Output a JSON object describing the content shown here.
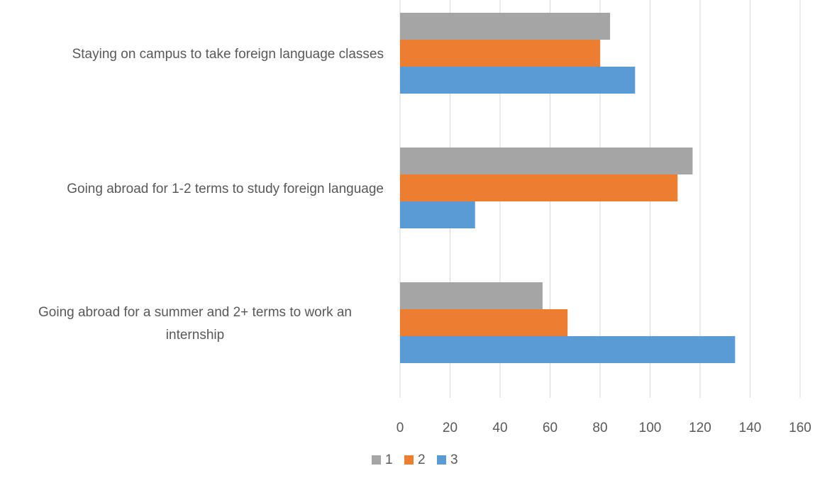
{
  "chart_data": {
    "type": "bar",
    "orientation": "horizontal",
    "categories": [
      [
        "Staying on campus to take foreign language classes"
      ],
      [
        "Going abroad for 1-2 terms to study foreign language"
      ],
      [
        "Going abroad for a summer and 2+ terms to work an",
        "internship"
      ]
    ],
    "series": [
      {
        "name": "1",
        "color": "#a5a5a5",
        "values": [
          84,
          117,
          57
        ]
      },
      {
        "name": "2",
        "color": "#ed7d31",
        "values": [
          80,
          111,
          67
        ]
      },
      {
        "name": "3",
        "color": "#5b9bd5",
        "values": [
          94,
          30,
          134
        ]
      }
    ],
    "xlim": [
      0,
      160
    ],
    "xticks": [
      0,
      20,
      40,
      60,
      80,
      100,
      120,
      140,
      160
    ],
    "grid": "vertical",
    "legend": "bottom",
    "title": "",
    "xlabel": "",
    "ylabel": ""
  }
}
